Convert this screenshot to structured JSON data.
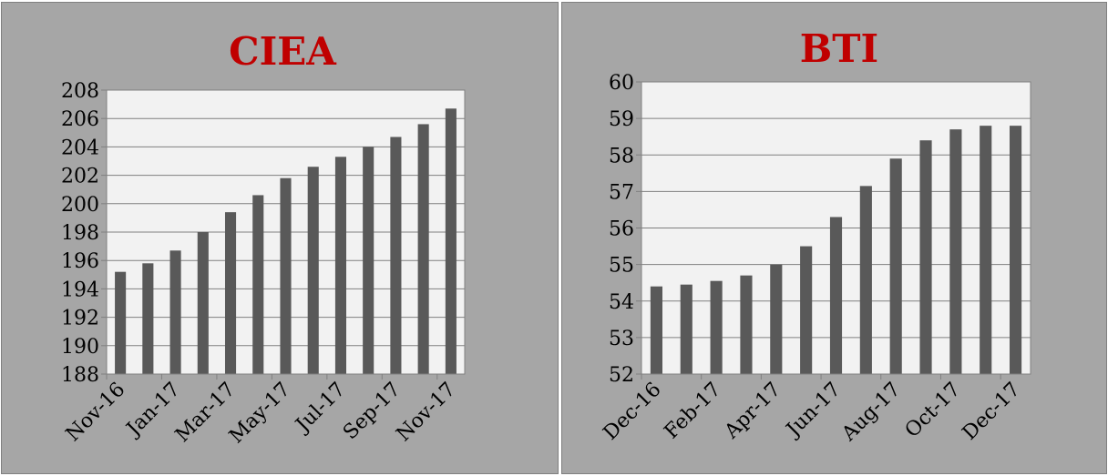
{
  "colors": {
    "background": "#a6a6a6",
    "plot_area": "#f2f2f2",
    "bar": "#595959",
    "title": "#c00000",
    "gridline": "#808080"
  },
  "chart_data": [
    {
      "type": "bar",
      "title": "CIEA",
      "xlabel": "",
      "ylabel": "",
      "categories": [
        "Nov-16",
        "Dec-16",
        "Jan-17",
        "Feb-17",
        "Mar-17",
        "Apr-17",
        "May-17",
        "Jun-17",
        "Jul-17",
        "Aug-17",
        "Sep-17",
        "Oct-17",
        "Nov-17"
      ],
      "tick_labels": [
        "Nov-16",
        "Jan-17",
        "Mar-17",
        "May-17",
        "Jul-17",
        "Sep-17",
        "Nov-17"
      ],
      "values": [
        195.2,
        195.8,
        196.7,
        198.0,
        199.4,
        200.6,
        201.8,
        202.6,
        203.3,
        204.0,
        204.7,
        205.6,
        206.7
      ],
      "ylim": [
        188,
        208
      ],
      "yticks": [
        188,
        190,
        192,
        194,
        196,
        198,
        200,
        202,
        204,
        206,
        208
      ],
      "grid": true
    },
    {
      "type": "bar",
      "title": "BTI",
      "xlabel": "",
      "ylabel": "",
      "categories": [
        "Dec-16",
        "Jan-17",
        "Feb-17",
        "Mar-17",
        "Apr-17",
        "May-17",
        "Jun-17",
        "Jul-17",
        "Aug-17",
        "Sep-17",
        "Oct-17",
        "Nov-17",
        "Dec-17"
      ],
      "tick_labels": [
        "Dec-16",
        "Feb-17",
        "Apr-17",
        "Jun-17",
        "Aug-17",
        "Oct-17",
        "Dec-17"
      ],
      "values": [
        54.4,
        54.45,
        54.55,
        54.7,
        55.0,
        55.5,
        56.3,
        57.15,
        57.9,
        58.4,
        58.7,
        58.8,
        58.8
      ],
      "ylim": [
        52,
        60
      ],
      "yticks": [
        52,
        53,
        54,
        55,
        56,
        57,
        58,
        59,
        60
      ],
      "grid": true
    }
  ]
}
